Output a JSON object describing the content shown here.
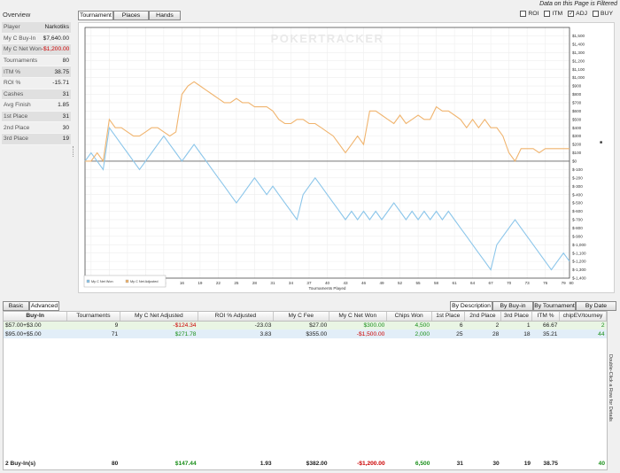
{
  "overview": {
    "title": "Overview",
    "stats": [
      {
        "label": "Player",
        "value": "Narkotiks",
        "neg": false
      },
      {
        "label": "My C Buy-In",
        "value": "$7,640.00",
        "neg": false
      },
      {
        "label": "My C Net Won",
        "value": "-$1,200.00",
        "neg": true
      },
      {
        "label": "Tournaments",
        "value": "80",
        "neg": false
      },
      {
        "label": "ITM %",
        "value": "38.75",
        "neg": false
      },
      {
        "label": "ROI %",
        "value": "-15.71",
        "neg": false
      },
      {
        "label": "Cashes",
        "value": "31",
        "neg": false
      },
      {
        "label": "Avg Finish",
        "value": "1.85",
        "neg": false
      },
      {
        "label": "1st Place",
        "value": "31",
        "neg": false
      },
      {
        "label": "2nd Place",
        "value": "30",
        "neg": false
      },
      {
        "label": "3rd Place",
        "value": "19",
        "neg": false
      }
    ]
  },
  "header": {
    "filtered_notice": "Data on this Page is Filtered",
    "tabs": [
      "Tournament",
      "Places",
      "Hands"
    ],
    "active_tab": "Tournament",
    "checkboxes": [
      {
        "label": "ROI",
        "checked": false
      },
      {
        "label": "ITM",
        "checked": false
      },
      {
        "label": "ADJ",
        "checked": true
      },
      {
        "label": "BUY",
        "checked": false
      }
    ]
  },
  "chart_data": {
    "type": "line",
    "watermark": "POKERTRACKER",
    "xlabel": "Tournaments Played",
    "ylabel": "",
    "xlim": [
      0,
      80
    ],
    "ylim": [
      -1400,
      1600
    ],
    "y_ticks": [
      1500,
      1400,
      1300,
      1200,
      1100,
      1000,
      900,
      800,
      700,
      600,
      500,
      400,
      300,
      200,
      100,
      0,
      -100,
      -200,
      -300,
      -400,
      -500,
      -600,
      -700,
      -800,
      -900,
      -1000,
      -1100,
      -1200,
      -1300,
      -1400
    ],
    "y_tick_labels": [
      "$1,500",
      "$1,400",
      "$1,300",
      "$1,200",
      "$1,100",
      "$1,000",
      "$900",
      "$800",
      "$700",
      "$600",
      "$500",
      "$400",
      "$300",
      "$200",
      "$100",
      "$0",
      "$-100",
      "$-200",
      "$-300",
      "$-400",
      "$-500",
      "$-600",
      "$-700",
      "$-800",
      "$-900",
      "$-1,000",
      "$-1,100",
      "$-1,200",
      "$-1,300",
      "$-1,400"
    ],
    "x_ticks": [
      1,
      4,
      7,
      10,
      13,
      16,
      19,
      22,
      25,
      28,
      31,
      34,
      37,
      40,
      43,
      46,
      49,
      52,
      55,
      58,
      61,
      64,
      67,
      70,
      73,
      76,
      79,
      80
    ],
    "grid": true,
    "legend_position": "bottom-left",
    "series": [
      {
        "name": "My C Net Won",
        "color": "#8cc6ea",
        "x": [
          0,
          1,
          2,
          3,
          4,
          5,
          6,
          7,
          8,
          9,
          10,
          11,
          12,
          13,
          14,
          15,
          16,
          17,
          18,
          19,
          20,
          21,
          22,
          23,
          24,
          25,
          26,
          27,
          28,
          29,
          30,
          31,
          32,
          33,
          34,
          35,
          36,
          37,
          38,
          39,
          40,
          41,
          42,
          43,
          44,
          45,
          46,
          47,
          48,
          49,
          50,
          51,
          52,
          53,
          54,
          55,
          56,
          57,
          58,
          59,
          60,
          61,
          62,
          63,
          64,
          65,
          66,
          67,
          68,
          69,
          70,
          71,
          72,
          73,
          74,
          75,
          76,
          77,
          78,
          79,
          80
        ],
        "values": [
          0,
          100,
          0,
          -100,
          400,
          300,
          200,
          100,
          0,
          -100,
          0,
          100,
          200,
          300,
          200,
          100,
          0,
          100,
          200,
          100,
          0,
          -100,
          -200,
          -300,
          -400,
          -500,
          -400,
          -300,
          -200,
          -300,
          -400,
          -300,
          -400,
          -500,
          -600,
          -700,
          -400,
          -300,
          -200,
          -300,
          -400,
          -500,
          -600,
          -700,
          -600,
          -700,
          -600,
          -700,
          -600,
          -700,
          -600,
          -500,
          -600,
          -700,
          -600,
          -700,
          -600,
          -700,
          -600,
          -700,
          -600,
          -700,
          -800,
          -900,
          -1000,
          -1100,
          -1200,
          -1300,
          -1000,
          -900,
          -800,
          -700,
          -800,
          -900,
          -1000,
          -1100,
          -1200,
          -1300,
          -1200,
          -1100,
          -1200
        ]
      },
      {
        "name": "My C Net Adjusted",
        "color": "#f0b46e",
        "x": [
          0,
          1,
          2,
          3,
          4,
          5,
          6,
          7,
          8,
          9,
          10,
          11,
          12,
          13,
          14,
          15,
          16,
          17,
          18,
          19,
          20,
          21,
          22,
          23,
          24,
          25,
          26,
          27,
          28,
          29,
          30,
          31,
          32,
          33,
          34,
          35,
          36,
          37,
          38,
          39,
          40,
          41,
          42,
          43,
          44,
          45,
          46,
          47,
          48,
          49,
          50,
          51,
          52,
          53,
          54,
          55,
          56,
          57,
          58,
          59,
          60,
          61,
          62,
          63,
          64,
          65,
          66,
          67,
          68,
          69,
          70,
          71,
          72,
          73,
          74,
          75,
          76,
          77,
          78,
          79,
          80
        ],
        "values": [
          0,
          0,
          100,
          0,
          500,
          400,
          400,
          350,
          300,
          300,
          350,
          400,
          400,
          350,
          300,
          350,
          800,
          900,
          950,
          900,
          850,
          800,
          750,
          700,
          700,
          750,
          700,
          700,
          650,
          650,
          650,
          600,
          500,
          450,
          450,
          500,
          500,
          450,
          450,
          400,
          350,
          300,
          200,
          100,
          200,
          300,
          200,
          600,
          600,
          550,
          500,
          450,
          550,
          450,
          500,
          550,
          500,
          500,
          650,
          600,
          600,
          550,
          500,
          400,
          500,
          400,
          500,
          400,
          400,
          300,
          100,
          0,
          150,
          150,
          150,
          100,
          150,
          150,
          150,
          150,
          150
        ]
      }
    ]
  },
  "bottom": {
    "left_tabs": [
      "Basic",
      "Advanced"
    ],
    "active_left_tab": "Advanced",
    "right_tabs": [
      "By Description",
      "By Buy-in",
      "By Tournament",
      "By Date"
    ],
    "active_right_tab": "By Description",
    "columns": [
      "Buy-In",
      "Tournaments",
      "My C Net Adjusted",
      "ROI % Adjusted",
      "My C Fee",
      "My C Net Won",
      "Chips Won",
      "1st Place",
      "2nd Place",
      "3rd Place",
      "ITM %",
      "chipEV/tourney"
    ],
    "rows": [
      [
        "$57.00+$3.00",
        "9",
        "-$124.34",
        "-23.03",
        "$27.00",
        "$300.00",
        "4,500",
        "6",
        "2",
        "1",
        "66.67",
        "2"
      ],
      [
        "$95.00+$5.00",
        "71",
        "$271.78",
        "3.83",
        "$355.00",
        "-$1,500.00",
        "2,000",
        "25",
        "28",
        "18",
        "35.21",
        "44"
      ]
    ],
    "totals": [
      "2 Buy-In(s)",
      "80",
      "$147.44",
      "1.93",
      "$382.00",
      "-$1,200.00",
      "6,500",
      "31",
      "30",
      "19",
      "38.75",
      "40"
    ],
    "side_hint": "Double-Click a Row for Details"
  }
}
